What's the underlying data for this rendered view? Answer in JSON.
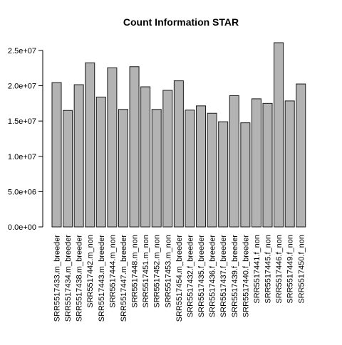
{
  "chart_data": {
    "type": "bar",
    "title": "Count Information STAR",
    "xlabel": "",
    "ylabel": "",
    "categories": [
      "SRR5517433.m_breeder",
      "SRR5517434.m_breeder",
      "SRR5517438.m_breeder",
      "SRR5517442.m_non",
      "SRR5517443.m_breeder",
      "SRR5517444.m_non",
      "SRR5517447.m_breeder",
      "SRR5517448.m_non",
      "SRR5517451.m_non",
      "SRR5517452.m_non",
      "SRR5517453.m_non",
      "SRR5517454.m_breeder",
      "SRR5517432.f_breeder",
      "SRR5517435.f_breeder",
      "SRR5517436.f_breeder",
      "SRR5517437.f_breeder",
      "SRR5517439.f_breeder",
      "SRR5517440.f_breeder",
      "SRR5517441.f_non",
      "SRR5517445.f_non",
      "SRR5517446.f_non",
      "SRR5517449.f_non",
      "SRR5517450.f_non"
    ],
    "values": [
      20450000,
      16500000,
      20150000,
      23250000,
      18400000,
      22550000,
      16650000,
      22700000,
      19850000,
      16650000,
      19350000,
      20700000,
      16550000,
      17150000,
      16100000,
      14900000,
      18600000,
      14750000,
      18150000,
      17500000,
      26100000,
      17850000,
      20250000
    ],
    "ylim": [
      0,
      26100000
    ],
    "yticks": [
      0,
      5000000,
      10000000,
      15000000,
      20000000,
      25000000
    ],
    "ytick_labels": [
      "0.0e+00",
      "5.0e+06",
      "1.0e+07",
      "1.5e+07",
      "2.0e+07",
      "2.5e+07"
    ],
    "bar_color": "#b3b3b3",
    "bar_border_color": "#1a1a1a",
    "grid": false,
    "legend": "none"
  }
}
